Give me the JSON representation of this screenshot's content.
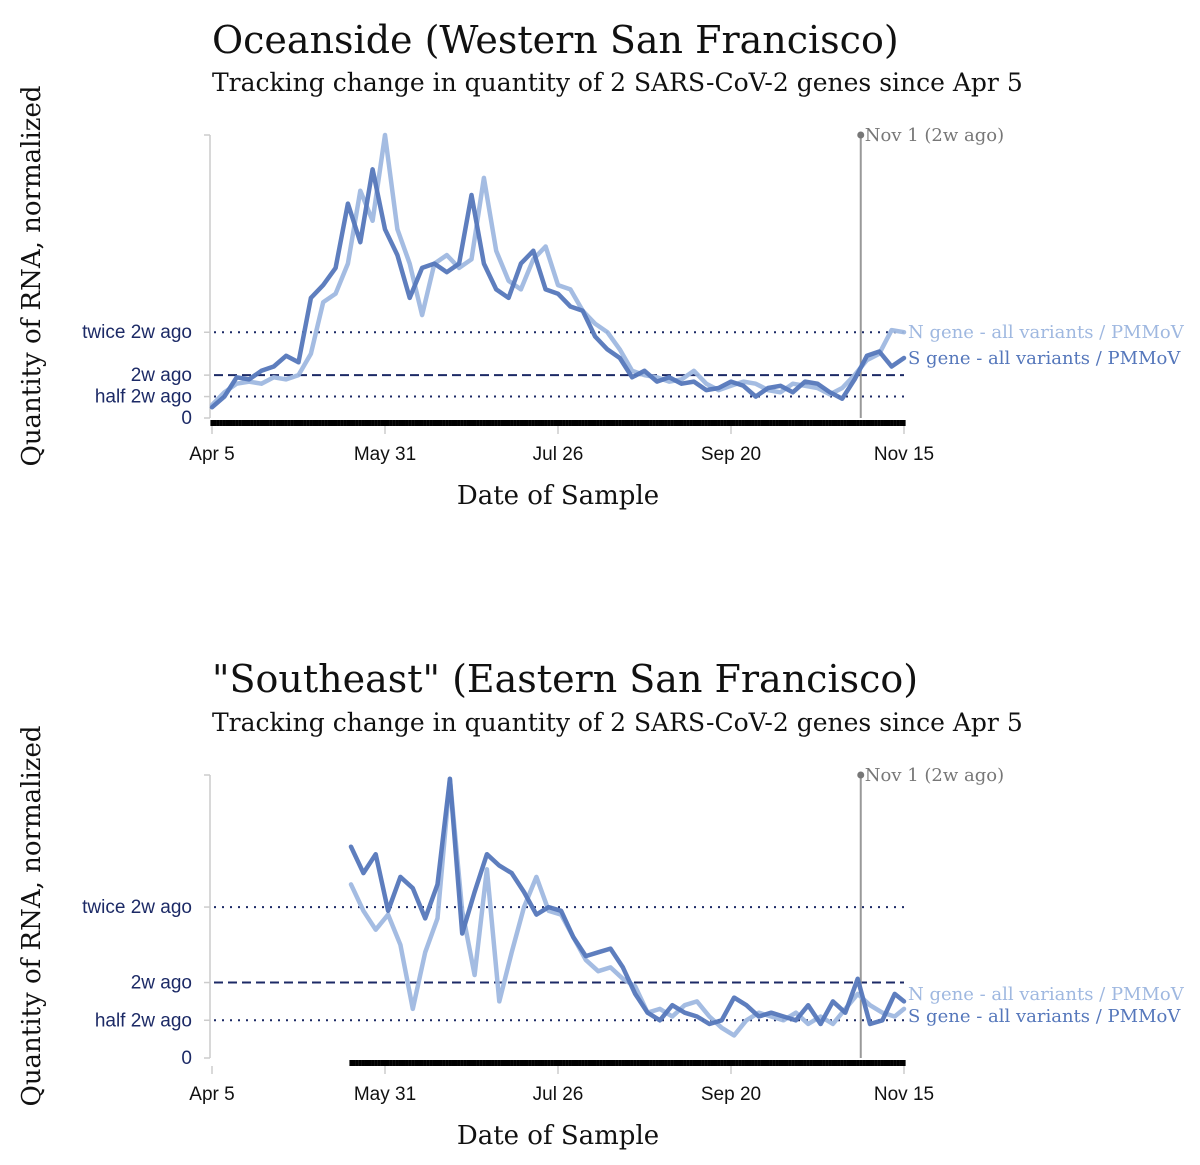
{
  "chart_data": [
    {
      "type": "line",
      "title": "Oceanside (Western San Francisco)",
      "subtitle": "Tracking change in quantity of 2 SARS-CoV-2 genes since Apr 5",
      "xlabel": "Date of Sample",
      "ylabel": "Quantity of RNA, normalized",
      "x_ticks": [
        "Apr 5",
        "May 31",
        "Jul 26",
        "Sep 20",
        "Nov 15"
      ],
      "x_range_days": [
        0,
        224
      ],
      "ylim": [
        0,
        6.6
      ],
      "reference_lines": [
        {
          "label": "twice 2w ago",
          "value": 2,
          "style": "dotted"
        },
        {
          "label": "2w ago",
          "value": 1,
          "style": "dashed"
        },
        {
          "label": "half 2w ago",
          "value": 0.5,
          "style": "dotted"
        },
        {
          "label": "0",
          "value": 0,
          "style": "none"
        }
      ],
      "annotation": {
        "label": "Nov 1 (2w ago)",
        "day": 210
      },
      "colors": {
        "n_gene": "#9fb8e0",
        "s_gene": "#5577bb",
        "ref": "#1c2a66",
        "marker": "#999999"
      },
      "sample_days_start": 0,
      "series": [
        {
          "name": "N gene - all variants / PMMoV",
          "x": [
            0,
            4,
            8,
            12,
            16,
            20,
            24,
            28,
            32,
            36,
            40,
            44,
            48,
            52,
            56,
            60,
            64,
            68,
            72,
            76,
            80,
            84,
            88,
            92,
            96,
            100,
            104,
            108,
            112,
            116,
            120,
            124,
            128,
            132,
            136,
            140,
            144,
            148,
            152,
            156,
            160,
            164,
            168,
            172,
            176,
            180,
            184,
            188,
            192,
            196,
            200,
            204,
            208,
            212,
            216,
            220,
            224
          ],
          "values": [
            0.3,
            0.6,
            0.8,
            0.85,
            0.8,
            0.95,
            0.9,
            1.0,
            1.5,
            2.7,
            2.9,
            3.6,
            5.3,
            4.6,
            6.6,
            4.4,
            3.6,
            2.4,
            3.6,
            3.8,
            3.5,
            3.7,
            5.6,
            3.9,
            3.2,
            3.0,
            3.7,
            4.0,
            3.1,
            3.0,
            2.5,
            2.2,
            2.0,
            1.6,
            1.1,
            1.0,
            0.95,
            0.85,
            0.9,
            1.1,
            0.8,
            0.65,
            0.75,
            0.85,
            0.8,
            0.65,
            0.6,
            0.8,
            0.75,
            0.7,
            0.55,
            0.7,
            1.0,
            1.35,
            1.5,
            2.05,
            2.0
          ]
        },
        {
          "name": "S gene - all variants / PMMoV",
          "x": [
            0,
            4,
            8,
            12,
            16,
            20,
            24,
            28,
            32,
            36,
            40,
            44,
            48,
            52,
            56,
            60,
            64,
            68,
            72,
            76,
            80,
            84,
            88,
            92,
            96,
            100,
            104,
            108,
            112,
            116,
            120,
            124,
            128,
            132,
            136,
            140,
            144,
            148,
            152,
            156,
            160,
            164,
            168,
            172,
            176,
            180,
            184,
            188,
            192,
            196,
            200,
            204,
            208,
            212,
            216,
            220,
            224
          ],
          "values": [
            0.25,
            0.5,
            0.95,
            0.9,
            1.1,
            1.2,
            1.45,
            1.3,
            2.8,
            3.1,
            3.5,
            5.0,
            4.1,
            5.8,
            4.4,
            3.8,
            2.8,
            3.5,
            3.6,
            3.4,
            3.6,
            5.2,
            3.6,
            3.0,
            2.8,
            3.6,
            3.9,
            3.0,
            2.9,
            2.6,
            2.5,
            1.9,
            1.6,
            1.4,
            0.95,
            1.1,
            0.85,
            0.95,
            0.8,
            0.85,
            0.65,
            0.7,
            0.85,
            0.75,
            0.5,
            0.7,
            0.75,
            0.6,
            0.85,
            0.8,
            0.6,
            0.45,
            0.9,
            1.45,
            1.55,
            1.2,
            1.4
          ]
        }
      ]
    },
    {
      "type": "line",
      "title": "\"Southeast\" (Eastern San Francisco)",
      "subtitle": "Tracking change in quantity of 2 SARS-CoV-2 genes since Apr 5",
      "xlabel": "Date of Sample",
      "ylabel": "Quantity of RNA, normalized",
      "x_ticks": [
        "Apr 5",
        "May 31",
        "Jul 26",
        "Sep 20",
        "Nov 15"
      ],
      "x_range_days": [
        0,
        224
      ],
      "ylim": [
        0,
        3.75
      ],
      "reference_lines": [
        {
          "label": "twice 2w ago",
          "value": 2,
          "style": "dotted"
        },
        {
          "label": "2w ago",
          "value": 1,
          "style": "dashed"
        },
        {
          "label": "half 2w ago",
          "value": 0.5,
          "style": "dotted"
        },
        {
          "label": "0",
          "value": 0,
          "style": "none"
        }
      ],
      "annotation": {
        "label": "Nov 1 (2w ago)",
        "day": 210
      },
      "colors": {
        "n_gene": "#9fb8e0",
        "s_gene": "#5577bb",
        "ref": "#1c2a66",
        "marker": "#999999"
      },
      "sample_days_start": 45,
      "series": [
        {
          "name": "N gene - all variants / PMMoV",
          "x": [
            45,
            49,
            53,
            57,
            61,
            65,
            69,
            73,
            77,
            81,
            85,
            89,
            93,
            97,
            101,
            105,
            109,
            113,
            117,
            121,
            125,
            129,
            133,
            137,
            141,
            145,
            149,
            153,
            157,
            161,
            165,
            169,
            173,
            177,
            181,
            185,
            189,
            193,
            197,
            201,
            205,
            209,
            213,
            217,
            221,
            224
          ],
          "values": [
            2.3,
            1.95,
            1.7,
            1.9,
            1.5,
            0.65,
            1.4,
            1.85,
            3.7,
            1.95,
            1.1,
            2.5,
            0.75,
            1.4,
            2.0,
            2.4,
            1.95,
            1.9,
            1.6,
            1.3,
            1.15,
            1.2,
            1.05,
            0.95,
            0.6,
            0.65,
            0.55,
            0.7,
            0.75,
            0.55,
            0.4,
            0.3,
            0.5,
            0.6,
            0.55,
            0.5,
            0.6,
            0.45,
            0.55,
            0.45,
            0.65,
            0.85,
            0.7,
            0.6,
            0.55,
            0.65
          ]
        },
        {
          "name": "S gene - all variants / PMMoV",
          "x": [
            45,
            49,
            53,
            57,
            61,
            65,
            69,
            73,
            77,
            81,
            85,
            89,
            93,
            97,
            101,
            105,
            109,
            113,
            117,
            121,
            125,
            129,
            133,
            137,
            141,
            145,
            149,
            153,
            157,
            161,
            165,
            169,
            173,
            177,
            181,
            185,
            189,
            193,
            197,
            201,
            205,
            209,
            213,
            217,
            221,
            224
          ],
          "values": [
            2.8,
            2.45,
            2.7,
            1.95,
            2.4,
            2.25,
            1.85,
            2.3,
            3.7,
            1.65,
            2.2,
            2.7,
            2.55,
            2.45,
            2.2,
            1.9,
            2.0,
            1.95,
            1.6,
            1.35,
            1.4,
            1.45,
            1.2,
            0.85,
            0.6,
            0.5,
            0.7,
            0.6,
            0.55,
            0.45,
            0.5,
            0.8,
            0.7,
            0.55,
            0.6,
            0.55,
            0.5,
            0.7,
            0.45,
            0.75,
            0.6,
            1.05,
            0.45,
            0.5,
            0.85,
            0.75
          ]
        }
      ]
    }
  ]
}
